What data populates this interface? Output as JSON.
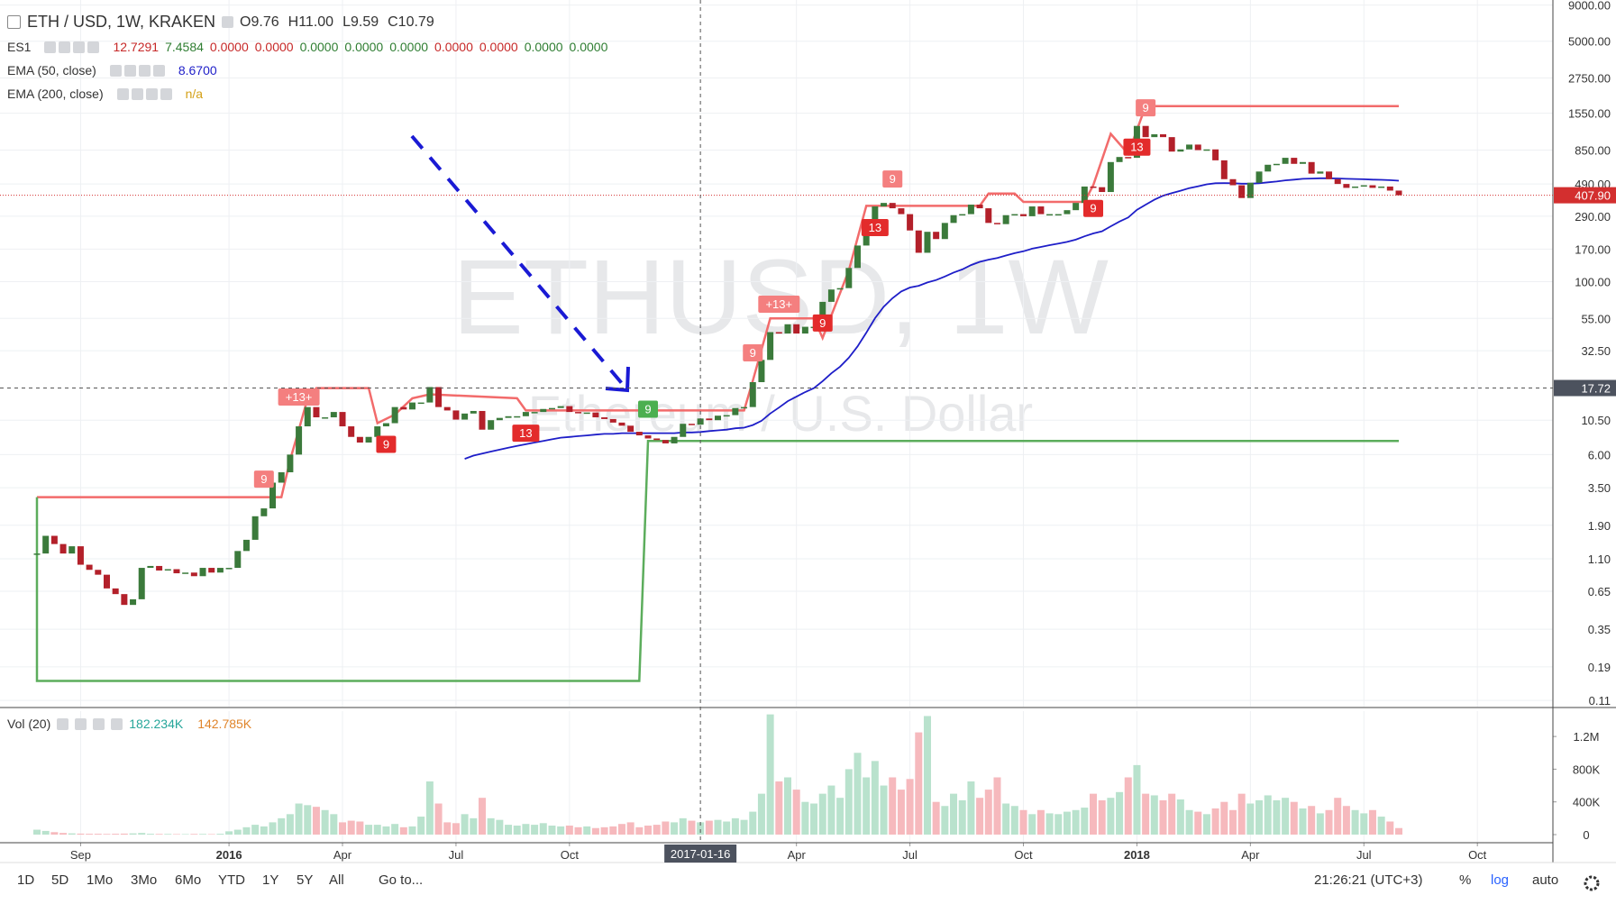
{
  "chart_data": {
    "type": "candlestick",
    "title": "ETH / USD, 1W, KRAKEN",
    "watermark": "ETHUSD, 1W",
    "watermark_subtitle": "Ethereum / U.S. Dollar",
    "ohlc": [
      {
        "key": "O",
        "value": "9.76"
      },
      {
        "key": "H",
        "value": "11.00"
      },
      {
        "key": "L",
        "value": "9.59"
      },
      {
        "key": "C",
        "value": "10.79"
      }
    ],
    "indicators": [
      {
        "name": "ES1",
        "values": [
          {
            "text": "12.7291",
            "color": "#c62828"
          },
          {
            "text": "7.4584",
            "color": "#2e7d32"
          },
          {
            "text": "0.0000",
            "color": "#c62828"
          },
          {
            "text": "0.0000",
            "color": "#c62828"
          },
          {
            "text": "0.0000",
            "color": "#2e7d32"
          },
          {
            "text": "0.0000",
            "color": "#2e7d32"
          },
          {
            "text": "0.0000",
            "color": "#2e7d32"
          },
          {
            "text": "0.0000",
            "color": "#c62828"
          },
          {
            "text": "0.0000",
            "color": "#c62828"
          },
          {
            "text": "0.0000",
            "color": "#2e7d32"
          },
          {
            "text": "0.0000",
            "color": "#2e7d32"
          }
        ]
      },
      {
        "name": "EMA (50, close)",
        "values": [
          {
            "text": "8.6700",
            "color": "#1e1ec8"
          }
        ]
      },
      {
        "name": "EMA (200, close)",
        "values": [
          {
            "text": "n/a",
            "color": "#d4a017"
          }
        ]
      }
    ],
    "x": [
      "2015-08-03",
      "2015-08-10",
      "2015-08-17",
      "2015-08-24",
      "2015-08-31",
      "2015-09-07",
      "2015-09-14",
      "2015-09-21",
      "2015-09-28",
      "2015-10-05",
      "2015-10-12",
      "2015-10-19",
      "2015-10-26",
      "2015-11-02",
      "2015-11-09",
      "2015-11-16",
      "2015-11-23",
      "2015-11-30",
      "2015-12-07",
      "2015-12-14",
      "2015-12-21",
      "2015-12-28",
      "2016-01-04",
      "2016-01-11",
      "2016-01-18",
      "2016-01-25",
      "2016-02-01",
      "2016-02-08",
      "2016-02-15",
      "2016-02-22",
      "2016-02-29",
      "2016-03-07",
      "2016-03-14",
      "2016-03-21",
      "2016-03-28",
      "2016-04-04",
      "2016-04-11",
      "2016-04-18",
      "2016-04-25",
      "2016-05-02",
      "2016-05-09",
      "2016-05-16",
      "2016-05-23",
      "2016-05-30",
      "2016-06-06",
      "2016-06-13",
      "2016-06-20",
      "2016-06-27",
      "2016-07-04",
      "2016-07-11",
      "2016-07-18",
      "2016-07-25",
      "2016-08-01",
      "2016-08-08",
      "2016-08-15",
      "2016-08-22",
      "2016-08-29",
      "2016-09-05",
      "2016-09-12",
      "2016-09-19",
      "2016-09-26",
      "2016-10-03",
      "2016-10-10",
      "2016-10-17",
      "2016-10-24",
      "2016-10-31",
      "2016-11-07",
      "2016-11-14",
      "2016-11-21",
      "2016-11-28",
      "2016-12-05",
      "2016-12-12",
      "2016-12-19",
      "2016-12-26",
      "2017-01-02",
      "2017-01-09",
      "2017-01-16",
      "2017-01-23",
      "2017-01-30",
      "2017-02-06",
      "2017-02-13",
      "2017-02-20",
      "2017-02-27",
      "2017-03-06",
      "2017-03-13",
      "2017-03-20",
      "2017-03-27",
      "2017-04-03",
      "2017-04-10",
      "2017-04-17",
      "2017-04-24",
      "2017-05-01",
      "2017-05-08",
      "2017-05-15",
      "2017-05-22",
      "2017-05-29",
      "2017-06-05",
      "2017-06-12",
      "2017-06-19",
      "2017-06-26",
      "2017-07-03",
      "2017-07-10",
      "2017-07-17",
      "2017-07-24",
      "2017-07-31",
      "2017-08-07",
      "2017-08-14",
      "2017-08-21",
      "2017-08-28",
      "2017-09-04",
      "2017-09-11",
      "2017-09-18",
      "2017-09-25",
      "2017-10-02",
      "2017-10-09",
      "2017-10-16",
      "2017-10-23",
      "2017-10-30",
      "2017-11-06",
      "2017-11-13",
      "2017-11-20",
      "2017-11-27",
      "2017-12-04",
      "2017-12-11",
      "2017-12-18",
      "2017-12-25",
      "2018-01-01",
      "2018-01-08",
      "2018-01-15",
      "2018-01-22",
      "2018-01-29",
      "2018-02-05",
      "2018-02-12",
      "2018-02-19",
      "2018-02-26",
      "2018-03-05",
      "2018-03-12",
      "2018-03-19",
      "2018-03-26",
      "2018-04-02",
      "2018-04-09",
      "2018-04-16",
      "2018-04-23",
      "2018-04-30",
      "2018-05-07",
      "2018-05-14",
      "2018-05-21",
      "2018-05-28",
      "2018-06-04",
      "2018-06-11",
      "2018-06-18",
      "2018-06-25",
      "2018-07-02",
      "2018-07-09",
      "2018-07-16",
      "2018-07-23",
      "2018-07-30"
    ],
    "candles": {
      "up_color": "#3b7a3b",
      "down_color": "#b3202a",
      "close": [
        1.2,
        1.6,
        1.4,
        1.2,
        1.35,
        1.0,
        0.92,
        0.85,
        0.68,
        0.62,
        0.52,
        0.57,
        0.95,
        0.98,
        0.91,
        0.93,
        0.87,
        0.88,
        0.83,
        0.95,
        0.88,
        0.95,
        0.95,
        1.25,
        1.5,
        2.2,
        2.5,
        3.8,
        4.5,
        6.0,
        9.5,
        13,
        11,
        11,
        12,
        9.5,
        8.0,
        7.3,
        8.0,
        9.5,
        10,
        13,
        12.5,
        14,
        14,
        18,
        13,
        12.3,
        10.6,
        11.7,
        12.2,
        9.0,
        10.5,
        10.9,
        11.2,
        11.2,
        12.0,
        12.0,
        12.6,
        12.8,
        13.2,
        12.0,
        11.9,
        11.9,
        11.0,
        10.7,
        10.1,
        9.6,
        8.7,
        8.2,
        7.8,
        7.6,
        7.2,
        8.0,
        9.9,
        9.76,
        10.79,
        10.5,
        11.3,
        11.4,
        12.8,
        13.0,
        19.5,
        28,
        44,
        43,
        50,
        43,
        48,
        48,
        72,
        88,
        90,
        125,
        180,
        260,
        340,
        360,
        330,
        300,
        230,
        160,
        225,
        200,
        260,
        295,
        300,
        350,
        330,
        260,
        255,
        295,
        300,
        290,
        340,
        300,
        300,
        300,
        320,
        360,
        470,
        465,
        430,
        700,
        760,
        750,
        1260,
        1050,
        1100,
        1050,
        830,
        860,
        930,
        850,
        860,
        720,
        530,
        480,
        390,
        500,
        600,
        670,
        680,
        750,
        680,
        700,
        580,
        600,
        530,
        490,
        460,
        470,
        480,
        460,
        470,
        440,
        407.9
      ]
    },
    "ema": {
      "color": "#1e1ec8",
      "values": [
        null,
        null,
        null,
        null,
        null,
        null,
        null,
        null,
        null,
        null,
        null,
        null,
        null,
        null,
        null,
        null,
        null,
        null,
        null,
        null,
        null,
        null,
        null,
        null,
        null,
        null,
        null,
        null,
        null,
        null,
        null,
        null,
        null,
        null,
        null,
        null,
        null,
        null,
        null,
        null,
        null,
        null,
        null,
        null,
        null,
        null,
        null,
        null,
        null,
        5.6,
        5.9,
        6.1,
        6.3,
        6.5,
        6.7,
        6.9,
        7.1,
        7.3,
        7.5,
        7.7,
        7.9,
        8.0,
        8.1,
        8.2,
        8.3,
        8.4,
        8.4,
        8.5,
        8.5,
        8.5,
        8.5,
        8.5,
        8.5,
        8.5,
        8.6,
        8.6,
        8.67,
        8.8,
        8.9,
        9.0,
        9.2,
        9.3,
        9.7,
        10.4,
        11.7,
        12.9,
        14.3,
        15.4,
        16.6,
        17.7,
        19.8,
        22.5,
        25.1,
        29.0,
        34.9,
        43.6,
        55.2,
        66.5,
        76.4,
        85.2,
        90.9,
        93.5,
        98.7,
        102.7,
        108.8,
        116,
        122,
        131,
        138,
        143,
        147,
        153,
        159,
        164,
        171,
        176,
        181,
        186,
        191,
        198,
        209,
        219,
        227,
        246,
        266,
        284,
        322,
        350,
        379,
        405,
        422,
        439,
        458,
        472,
        487,
        496,
        497,
        496,
        492,
        492,
        496,
        503,
        510,
        520,
        526,
        533,
        535,
        538,
        538,
        536,
        533,
        531,
        529,
        526,
        524,
        521,
        517
      ]
    },
    "overlays": [
      {
        "color": "#f26b6b",
        "x": [
          "2015-08-03",
          "2016-02-15",
          "2016-02-22",
          "2016-02-29",
          "2016-03-07",
          "2016-03-14",
          "2016-04-25",
          "2016-05-02",
          "2016-05-16",
          "2016-05-30",
          "2016-06-13",
          "2016-08-22",
          "2016-08-29",
          "2017-02-20",
          "2017-02-27",
          "2017-03-13",
          "2017-04-17",
          "2017-04-24",
          "2017-05-15",
          "2017-05-29",
          "2017-06-05",
          "2017-08-28",
          "2017-09-04",
          "2017-09-25",
          "2017-10-02",
          "2017-11-20",
          "2017-11-27",
          "2017-12-11",
          "2017-12-25",
          "2018-01-08",
          "2018-07-30"
        ],
        "values": [
          3.0,
          3.0,
          5.5,
          9.0,
          15.0,
          17.7,
          17.7,
          10.0,
          11.5,
          15.0,
          16.0,
          15.0,
          12.3,
          12.3,
          20,
          55,
          55,
          40,
          120,
          343,
          343,
          343,
          419,
          419,
          366,
          366,
          480,
          1107,
          800,
          1740,
          1740
        ]
      },
      {
        "color": "#5cad5c",
        "x": [
          "2015-08-03",
          "2015-08-03",
          "2016-11-28",
          "2016-12-05",
          "2018-07-30"
        ],
        "values": [
          3.0,
          0.151,
          0.151,
          7.5,
          7.5
        ]
      }
    ],
    "markers": [
      {
        "x": "2016-02-01",
        "label": "9",
        "side": "above",
        "color": "#f47f7f"
      },
      {
        "x": "2016-02-29",
        "label": "+13+",
        "side": "above",
        "color": "#f47f7f"
      },
      {
        "x": "2016-05-09",
        "label": "9",
        "side": "below",
        "color": "#e32b2b"
      },
      {
        "x": "2016-08-29",
        "label": "13",
        "side": "below",
        "color": "#e32b2b"
      },
      {
        "x": "2016-12-05",
        "label": "9",
        "side": "above",
        "color": "#4caf50"
      },
      {
        "x": "2017-02-27",
        "label": "9",
        "side": "above",
        "color": "#f47f7f"
      },
      {
        "x": "2017-03-20",
        "label": "+13+",
        "side": "above",
        "color": "#f47f7f"
      },
      {
        "x": "2017-04-24",
        "label": "9",
        "side": "below",
        "color": "#e32b2b"
      },
      {
        "x": "2017-06-05",
        "label": "13",
        "side": "below",
        "color": "#e32b2b"
      },
      {
        "x": "2017-06-19",
        "label": "9",
        "side": "above",
        "color": "#f47f7f"
      },
      {
        "x": "2017-11-27",
        "label": "9",
        "side": "below",
        "color": "#e32b2b"
      },
      {
        "x": "2018-01-01",
        "label": "13",
        "side": "below",
        "color": "#e32b2b"
      },
      {
        "x": "2018-01-08",
        "label": "9",
        "side": "above",
        "color": "#f47f7f"
      }
    ],
    "log": true,
    "grid": true,
    "ylim": [
      0.0994,
      9775
    ],
    "yticks": [
      {
        "value": 9000,
        "label": "9000.00"
      },
      {
        "value": 5000,
        "label": "5000.00"
      },
      {
        "value": 2750,
        "label": "2750.00"
      },
      {
        "value": 1550,
        "label": "1550.00"
      },
      {
        "value": 850,
        "label": "850.00"
      },
      {
        "value": 490,
        "label": "490.00"
      },
      {
        "value": 290,
        "label": "290.00"
      },
      {
        "value": 170,
        "label": "170.00"
      },
      {
        "value": 100,
        "label": "100.00"
      },
      {
        "value": 55,
        "label": "55.00"
      },
      {
        "value": 32.5,
        "label": "32.50"
      },
      {
        "value": 10.5,
        "label": "10.50"
      },
      {
        "value": 6,
        "label": "6.00"
      },
      {
        "value": 3.5,
        "label": "3.50"
      },
      {
        "value": 1.9,
        "label": "1.90"
      },
      {
        "value": 1.1,
        "label": "1.10"
      },
      {
        "value": 0.65,
        "label": "0.65"
      },
      {
        "value": 0.35,
        "label": "0.35"
      },
      {
        "value": 0.19,
        "label": "0.19"
      },
      {
        "value": 0.11,
        "label": "0.11"
      }
    ],
    "xticks": [
      {
        "value": "2015-09-07",
        "label": "Sep"
      },
      {
        "value": "2016-01-04",
        "label": "2016"
      },
      {
        "value": "2016-04-04",
        "label": "Apr"
      },
      {
        "value": "2016-07-04",
        "label": "Jul"
      },
      {
        "value": "2016-10-03",
        "label": "Oct"
      },
      {
        "value": "2017-04-03",
        "label": "Apr"
      },
      {
        "value": "2017-07-03",
        "label": "Jul"
      },
      {
        "value": "2017-10-02",
        "label": "Oct"
      },
      {
        "value": "2018-01-01",
        "label": "2018"
      },
      {
        "value": "2018-04-02",
        "label": "Apr"
      },
      {
        "value": "2018-07-02",
        "label": "Jul"
      },
      {
        "value": "2018-10-01",
        "label": "Oct"
      }
    ],
    "crosshair": {
      "x": "2017-01-16",
      "y": {
        "value": 17.72,
        "label": "17.72"
      }
    },
    "last_price": {
      "value": 407.9,
      "label": "407.90",
      "color": "#d32f2f"
    },
    "volume": {
      "name": "Vol (20)",
      "legend": [
        {
          "text": "182.234K",
          "color": "#26a69a"
        },
        {
          "text": "142.785K",
          "color": "#e0852b"
        }
      ],
      "up_color": "#b9e2cd",
      "down_color": "#f6b9bd",
      "ylim": [
        0,
        1510000
      ],
      "yticks": [
        0,
        {
          "value": 400000,
          "label": "400K"
        },
        {
          "value": 800000,
          "label": "800K"
        },
        {
          "value": 1200000,
          "label": "1.2M"
        }
      ],
      "values": [
        60000,
        45000,
        30000,
        20000,
        15000,
        12000,
        10000,
        10000,
        8000,
        10000,
        12000,
        15000,
        20000,
        10000,
        8000,
        8000,
        6000,
        6000,
        8000,
        8000,
        6000,
        10000,
        40000,
        60000,
        90000,
        120000,
        100000,
        150000,
        200000,
        250000,
        380000,
        360000,
        340000,
        300000,
        250000,
        150000,
        170000,
        160000,
        120000,
        120000,
        100000,
        130000,
        90000,
        100000,
        220000,
        650000,
        380000,
        150000,
        140000,
        250000,
        200000,
        450000,
        200000,
        180000,
        120000,
        110000,
        130000,
        120000,
        140000,
        110000,
        100000,
        110000,
        90000,
        100000,
        80000,
        90000,
        100000,
        130000,
        150000,
        90000,
        110000,
        120000,
        160000,
        150000,
        200000,
        170000,
        150000,
        170000,
        180000,
        160000,
        200000,
        180000,
        280000,
        500000,
        1470000,
        650000,
        700000,
        550000,
        400000,
        380000,
        500000,
        600000,
        450000,
        800000,
        1000000,
        700000,
        900000,
        600000,
        700000,
        550000,
        680000,
        1250000,
        1450000,
        400000,
        350000,
        500000,
        420000,
        650000,
        450000,
        550000,
        700000,
        380000,
        350000,
        300000,
        250000,
        300000,
        260000,
        250000,
        280000,
        300000,
        330000,
        500000,
        420000,
        450000,
        520000,
        700000,
        850000,
        500000,
        480000,
        420000,
        500000,
        430000,
        300000,
        280000,
        250000,
        320000,
        400000,
        300000,
        500000,
        380000,
        420000,
        480000,
        420000,
        450000,
        400000,
        320000,
        350000,
        260000,
        300000,
        450000,
        350000,
        300000,
        260000,
        300000,
        220000,
        160000,
        80000
      ]
    }
  },
  "toolbar": {
    "ranges": [
      "1D",
      "5D",
      "1Mo",
      "3Mo",
      "6Mo",
      "YTD",
      "1Y",
      "5Y",
      "All"
    ],
    "goto": "Go to...",
    "clock": "21:26:21 (UTC+3)",
    "percent": "%",
    "log": "log",
    "auto": "auto"
  }
}
